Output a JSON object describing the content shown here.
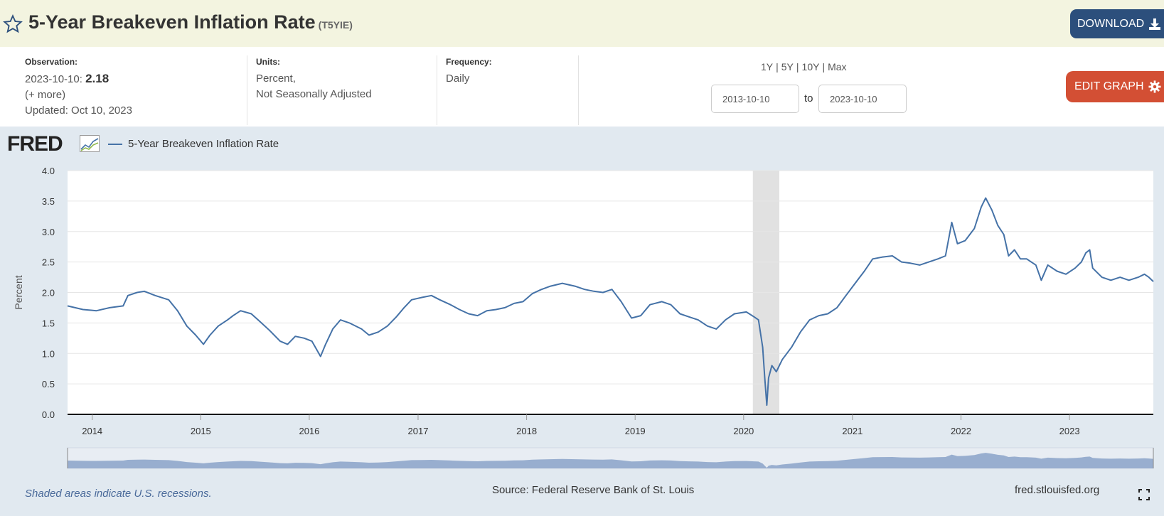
{
  "header": {
    "title": "5-Year Breakeven Inflation Rate",
    "series_id": "(T5YIE)",
    "download_label": "DOWNLOAD"
  },
  "info": {
    "observation_label": "Observation:",
    "observation_date": "2023-10-10:",
    "observation_value": "2.18",
    "more": "(+ more)",
    "updated": "Updated: Oct 10, 2023",
    "units_label": "Units:",
    "units_line1": "Percent,",
    "units_line2": "Not Seasonally Adjusted",
    "frequency_label": "Frequency:",
    "frequency_value": "Daily"
  },
  "range": {
    "options": [
      "1Y",
      "5Y",
      "10Y",
      "Max"
    ],
    "start": "2013-10-10",
    "end": "2023-10-10",
    "to_label": "to"
  },
  "edit_label": "EDIT GRAPH",
  "brand": "FRED",
  "footer": {
    "note": "Shaded areas indicate U.S. recessions.",
    "source": "Source: Federal Reserve Bank of St. Louis",
    "url": "fred.stlouisfed.org"
  },
  "colors": {
    "line": "#4572a7",
    "recession": "#e1e1e1",
    "download": "#2c4f7c",
    "edit": "#d34f34"
  },
  "chart_data": {
    "type": "line",
    "title": "",
    "xlabel": "",
    "ylabel": "Percent",
    "ylim": [
      0,
      4
    ],
    "yticks": [
      "0.0",
      "0.5",
      "1.0",
      "1.5",
      "2.0",
      "2.5",
      "3.0",
      "3.5",
      "4.0"
    ],
    "xlim": [
      "2013-10-10",
      "2023-10-10"
    ],
    "xticks": [
      "2014",
      "2015",
      "2016",
      "2017",
      "2018",
      "2019",
      "2020",
      "2021",
      "2022",
      "2023"
    ],
    "grid": true,
    "legend_position": "top-left",
    "recessions": [
      [
        "2020-02-01",
        "2020-04-30"
      ]
    ],
    "series": [
      {
        "name": "5-Year Breakeven Inflation Rate",
        "x": [
          "2013-10-10",
          "2013-12-01",
          "2014-01-15",
          "2014-03-01",
          "2014-04-15",
          "2014-05-01",
          "2014-06-01",
          "2014-06-25",
          "2014-08-01",
          "2014-09-15",
          "2014-10-15",
          "2014-11-15",
          "2014-12-15",
          "2015-01-10",
          "2015-02-01",
          "2015-03-01",
          "2015-04-01",
          "2015-04-20",
          "2015-05-15",
          "2015-06-20",
          "2015-07-20",
          "2015-08-20",
          "2015-09-25",
          "2015-10-20",
          "2015-11-15",
          "2015-12-15",
          "2016-01-10",
          "2016-02-08",
          "2016-02-25",
          "2016-03-20",
          "2016-04-15",
          "2016-05-15",
          "2016-06-25",
          "2016-07-20",
          "2016-08-20",
          "2016-09-20",
          "2016-10-20",
          "2016-11-15",
          "2016-12-10",
          "2017-01-15",
          "2017-02-15",
          "2017-03-15",
          "2017-04-20",
          "2017-05-20",
          "2017-06-20",
          "2017-07-20",
          "2017-08-20",
          "2017-09-20",
          "2017-10-20",
          "2017-11-20",
          "2017-12-20",
          "2018-01-20",
          "2018-02-20",
          "2018-03-20",
          "2018-05-01",
          "2018-06-15",
          "2018-07-15",
          "2018-08-15",
          "2018-09-15",
          "2018-10-15",
          "2018-11-15",
          "2018-12-20",
          "2019-01-20",
          "2019-02-20",
          "2019-04-01",
          "2019-05-01",
          "2019-06-01",
          "2019-07-01",
          "2019-08-01",
          "2019-09-01",
          "2019-10-01",
          "2019-11-01",
          "2019-12-01",
          "2020-01-10",
          "2020-02-05",
          "2020-02-20",
          "2020-03-05",
          "2020-03-12",
          "2020-03-19",
          "2020-03-25",
          "2020-04-05",
          "2020-04-20",
          "2020-05-10",
          "2020-06-10",
          "2020-07-10",
          "2020-08-10",
          "2020-09-10",
          "2020-10-10",
          "2020-11-10",
          "2020-12-10",
          "2021-01-10",
          "2021-02-10",
          "2021-03-10",
          "2021-04-10",
          "2021-05-15",
          "2021-06-15",
          "2021-07-15",
          "2021-08-15",
          "2021-09-15",
          "2021-10-15",
          "2021-11-10",
          "2021-12-01",
          "2021-12-20",
          "2022-01-15",
          "2022-02-15",
          "2022-03-10",
          "2022-03-25",
          "2022-04-15",
          "2022-05-05",
          "2022-05-25",
          "2022-06-10",
          "2022-06-30",
          "2022-07-20",
          "2022-08-10",
          "2022-09-10",
          "2022-09-28",
          "2022-10-20",
          "2022-11-20",
          "2022-12-20",
          "2023-01-20",
          "2023-02-10",
          "2023-02-25",
          "2023-03-10",
          "2023-03-20",
          "2023-04-20",
          "2023-05-20",
          "2023-06-20",
          "2023-07-20",
          "2023-08-20",
          "2023-09-10",
          "2023-09-25",
          "2023-10-10"
        ],
        "y": [
          1.78,
          1.72,
          1.7,
          1.75,
          1.78,
          1.95,
          2.0,
          2.02,
          1.95,
          1.88,
          1.7,
          1.45,
          1.3,
          1.15,
          1.3,
          1.45,
          1.55,
          1.62,
          1.7,
          1.65,
          1.52,
          1.38,
          1.2,
          1.15,
          1.28,
          1.25,
          1.2,
          0.95,
          1.15,
          1.4,
          1.55,
          1.5,
          1.4,
          1.3,
          1.35,
          1.45,
          1.6,
          1.75,
          1.88,
          1.92,
          1.95,
          1.88,
          1.8,
          1.72,
          1.65,
          1.62,
          1.7,
          1.72,
          1.75,
          1.82,
          1.85,
          1.98,
          2.05,
          2.1,
          2.15,
          2.1,
          2.05,
          2.02,
          2.0,
          2.05,
          1.85,
          1.58,
          1.62,
          1.8,
          1.85,
          1.8,
          1.65,
          1.6,
          1.55,
          1.45,
          1.4,
          1.55,
          1.65,
          1.68,
          1.6,
          1.55,
          1.1,
          0.6,
          0.15,
          0.6,
          0.8,
          0.7,
          0.9,
          1.1,
          1.35,
          1.55,
          1.62,
          1.65,
          1.75,
          1.95,
          2.15,
          2.35,
          2.55,
          2.58,
          2.6,
          2.5,
          2.48,
          2.45,
          2.5,
          2.55,
          2.6,
          3.15,
          2.8,
          2.85,
          3.05,
          3.4,
          3.55,
          3.35,
          3.1,
          2.95,
          2.6,
          2.7,
          2.55,
          2.55,
          2.45,
          2.2,
          2.45,
          2.35,
          2.3,
          2.4,
          2.5,
          2.65,
          2.7,
          2.4,
          2.25,
          2.2,
          2.25,
          2.2,
          2.25,
          2.3,
          2.25,
          2.18
        ]
      }
    ]
  }
}
